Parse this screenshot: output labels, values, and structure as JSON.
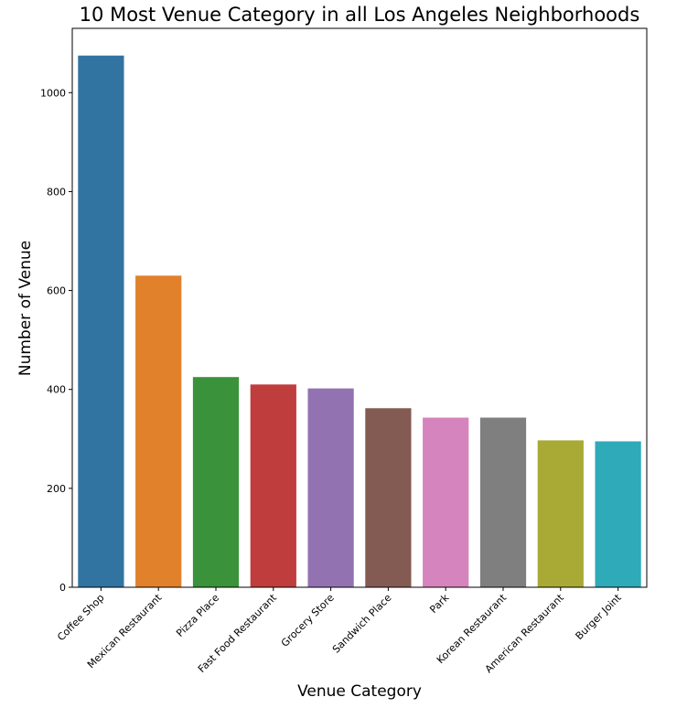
{
  "chart_data": {
    "type": "bar",
    "title": "10 Most Venue Category in all Los Angeles Neighborhoods",
    "xlabel": "Venue Category",
    "ylabel": "Number of Venue",
    "categories": [
      "Coffee Shop",
      "Mexican Restaurant",
      "Pizza Place",
      "Fast Food Restaurant",
      "Grocery Store",
      "Sandwich Place",
      "Park",
      "Korean Restaurant",
      "American Restaurant",
      "Burger Joint"
    ],
    "values": [
      1075,
      630,
      425,
      410,
      402,
      362,
      343,
      343,
      297,
      295
    ],
    "colors": [
      "#3274a1",
      "#e1812c",
      "#3a923a",
      "#c03d3e",
      "#9372b2",
      "#845b53",
      "#d684bd",
      "#7f7f7f",
      "#a9aa35",
      "#2eaab8"
    ],
    "ylim": [
      0,
      1130
    ],
    "yticks": [
      0,
      200,
      400,
      600,
      800,
      1000
    ],
    "grid": false,
    "legend": "none"
  }
}
